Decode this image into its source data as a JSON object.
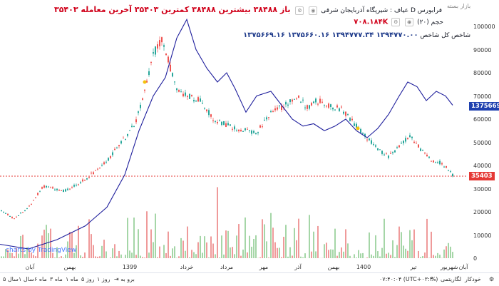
{
  "header": {
    "symbol_title": "فرابورس D عیاف : شیرپگاه آذربایجان شرقی",
    "ohlc_text": "باز ۳۸۴۸۸ بیشترین ۳۸۴۸۸ کمترین ۳۵۴۰۳ آخرین معامله ۳۵۴۰۳",
    "ohlc_prefix": "آخرین معامله",
    "vol_label": "حجم (۲۰)",
    "vol_value": "۷۰۸.۱۸۴K",
    "indicator_label": "شاخص کل شاخص",
    "indicator_values": "۱۳۹۴۷۷۰.۰۰   ۱۳۹۴۷۷۷.۳۴   ۱۳۷۵۶۶۰.۱۶   ۱۳۷۵۶۶۹.۱۶",
    "top_right": "بازار بسته"
  },
  "price_axis": {
    "ticks": [
      "100000",
      "90000",
      "80000",
      "70000",
      "60000",
      "50000",
      "40000",
      "30000",
      "20000",
      "10000",
      "0"
    ],
    "last_price_tag": "35403",
    "index_tag": "1375669.16",
    "last_price_color": "#e53935",
    "index_color": "#1e40af"
  },
  "time_axis": {
    "labels": [
      "آبان",
      "بهمن",
      "1399",
      "خرداد",
      "مرداد",
      "مهر",
      "آذر",
      "بهمن",
      "1400",
      "تیر",
      "شهریور",
      "آبان"
    ]
  },
  "watermark": "charts by TradingView",
  "bottom_bar": {
    "ranges": [
      "۵ سال",
      "۱ سال",
      "۶ ماه",
      "۳ ماه",
      "۱ ماه",
      "۵ روز",
      "۱ روز"
    ],
    "goto": "برو به",
    "clock": "۰۷:۴۰:۰۴ (UTC+۰۳:۳۰)",
    "pct": "%",
    "log": "لگاریتمی",
    "auto": "خودکار"
  },
  "chart_data": {
    "type": "candlestick",
    "price_last": 35403,
    "index_last": 1375669.16,
    "ylim": [
      0,
      105000
    ],
    "grid": false,
    "series": [
      {
        "name": "شیرپگاه",
        "kind": "candles",
        "color_up": "#26a69a",
        "color_down": "#ef5350"
      },
      {
        "name": "شاخص کل",
        "kind": "line",
        "color": "#1e1e9c"
      },
      {
        "name": "حجم",
        "kind": "volume"
      }
    ]
  }
}
